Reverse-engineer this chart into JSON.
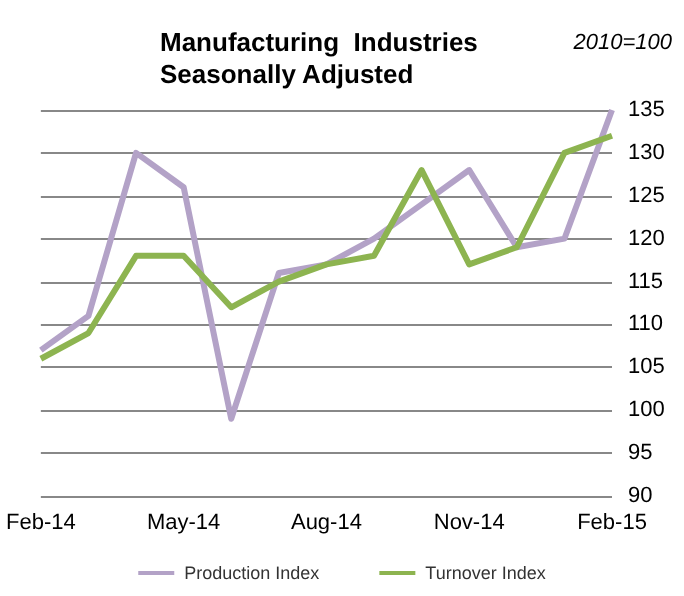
{
  "chart_data": {
    "type": "line",
    "title": "Manufacturing  Industries\nSeasonally Adjusted",
    "annotations": [
      "2010=100"
    ],
    "categories": [
      "Feb-14",
      null,
      null,
      "May-14",
      null,
      null,
      "Aug-14",
      null,
      null,
      "Nov-14",
      null,
      null,
      "Feb-15"
    ],
    "series": [
      {
        "name": "Production Index",
        "color": "#b3a2c7",
        "values": [
          107,
          111,
          130,
          126,
          99,
          116,
          117,
          120,
          124,
          128,
          119,
          120,
          135
        ]
      },
      {
        "name": "Turnover Index",
        "color": "#8db450",
        "values": [
          106,
          109,
          118,
          118,
          112,
          115,
          117,
          118,
          128,
          117,
          119,
          130,
          132
        ]
      }
    ],
    "ylim": [
      90,
      135
    ],
    "yticks": [
      90,
      95,
      100,
      105,
      110,
      115,
      120,
      125,
      130,
      135
    ],
    "grid": "y",
    "legend": "bottom",
    "marker": "none",
    "line_style": "solid"
  }
}
